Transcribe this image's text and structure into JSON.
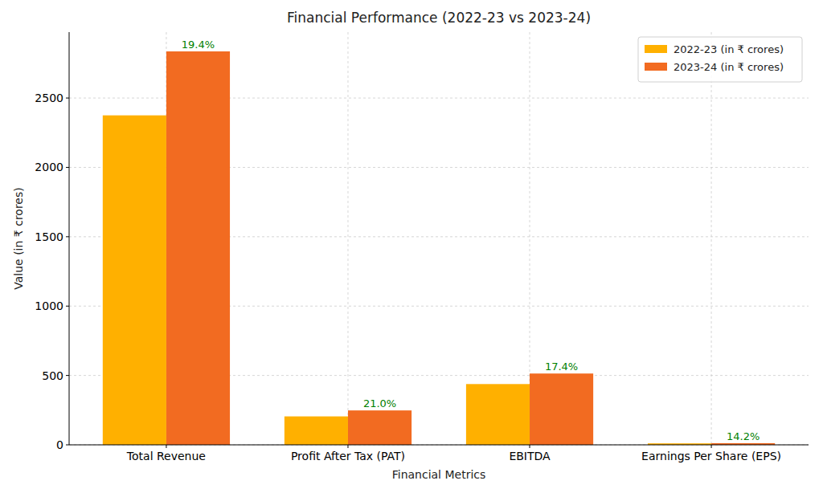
{
  "chart_data": {
    "type": "bar",
    "title": "Financial Performance (2022-23 vs 2023-24)",
    "x_label": "Financial Metrics",
    "y_label": "Value (in ₹ crores)",
    "categories": [
      "Total Revenue",
      "Profit After Tax (PAT)",
      "EBITDA",
      "Earnings Per Share (EPS)"
    ],
    "series": [
      {
        "name": "2022-23 (in ₹ crores)",
        "color": "#ffb000",
        "values": [
          2375,
          205,
          438,
          10.5
        ]
      },
      {
        "name": "2023-24 (in ₹ crores)",
        "color": "#f26b21",
        "values": [
          2836,
          248,
          514,
          12.0
        ]
      }
    ],
    "annotations": [
      "19.4%",
      "21.0%",
      "17.4%",
      "14.2%"
    ],
    "ylim": [
      0,
      2975
    ],
    "yticks": [
      0,
      500,
      1000,
      1500,
      2000,
      2500
    ],
    "grid": true,
    "legend": "upper right"
  }
}
